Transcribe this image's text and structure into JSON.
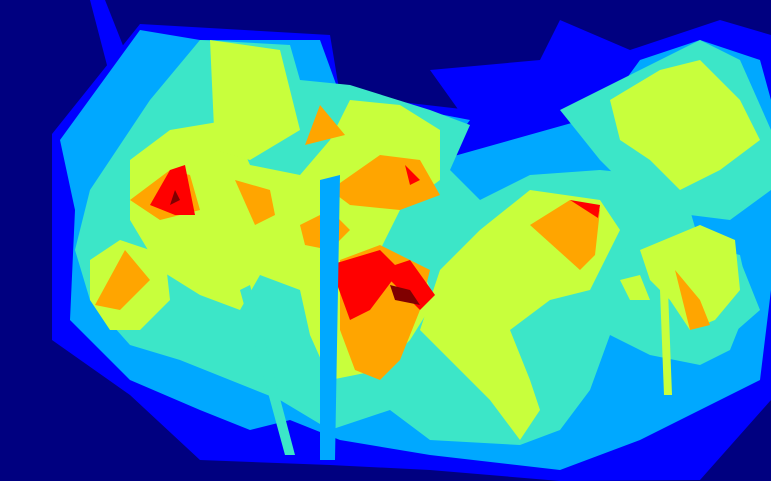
{
  "image": {
    "kind": "abstract overlapping polygons heatmap",
    "colormap": "jet",
    "palette": {
      "background": "#000080",
      "level_1": "#0000ff",
      "level_2": "#00a8ff",
      "level_3": "#3ce6c8",
      "level_4": "#c8ff3c",
      "level_5": "#ffa500",
      "level_6": "#ff0000",
      "level_7": "#800000"
    }
  }
}
